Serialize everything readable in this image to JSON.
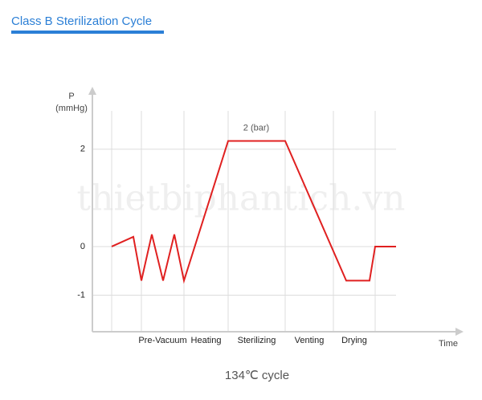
{
  "chart_data": {
    "type": "line",
    "title": "Class B Sterilization Cycle",
    "ylabel_lines": [
      "P",
      "(mmHg)"
    ],
    "xlabel": "Time",
    "caption": "134℃ cycle",
    "watermark": "thietbiphantich.vn",
    "annotation": {
      "text": "2 (bar)",
      "x": 204,
      "y": 2.17
    },
    "categories": [
      "Pre-Vacuum",
      "Heating",
      "Sterilizing",
      "Venting",
      "Drying"
    ],
    "phase_bounds": [
      24,
      61,
      114,
      169,
      240,
      300,
      352
    ],
    "x": [
      24,
      51,
      61,
      74,
      88,
      102,
      114,
      169,
      240,
      316,
      345,
      352,
      378
    ],
    "series": [
      {
        "name": "P",
        "color": "#e02020",
        "values": [
          0,
          0.2,
          -0.7,
          0.25,
          -0.7,
          0.25,
          -0.7,
          2.17,
          2.17,
          -0.7,
          -0.7,
          0,
          0
        ]
      }
    ],
    "xlim": [
      0,
      460
    ],
    "ylim": [
      -1.75,
      3.25
    ],
    "yticks": [
      2,
      0,
      -1
    ],
    "grid": true
  }
}
